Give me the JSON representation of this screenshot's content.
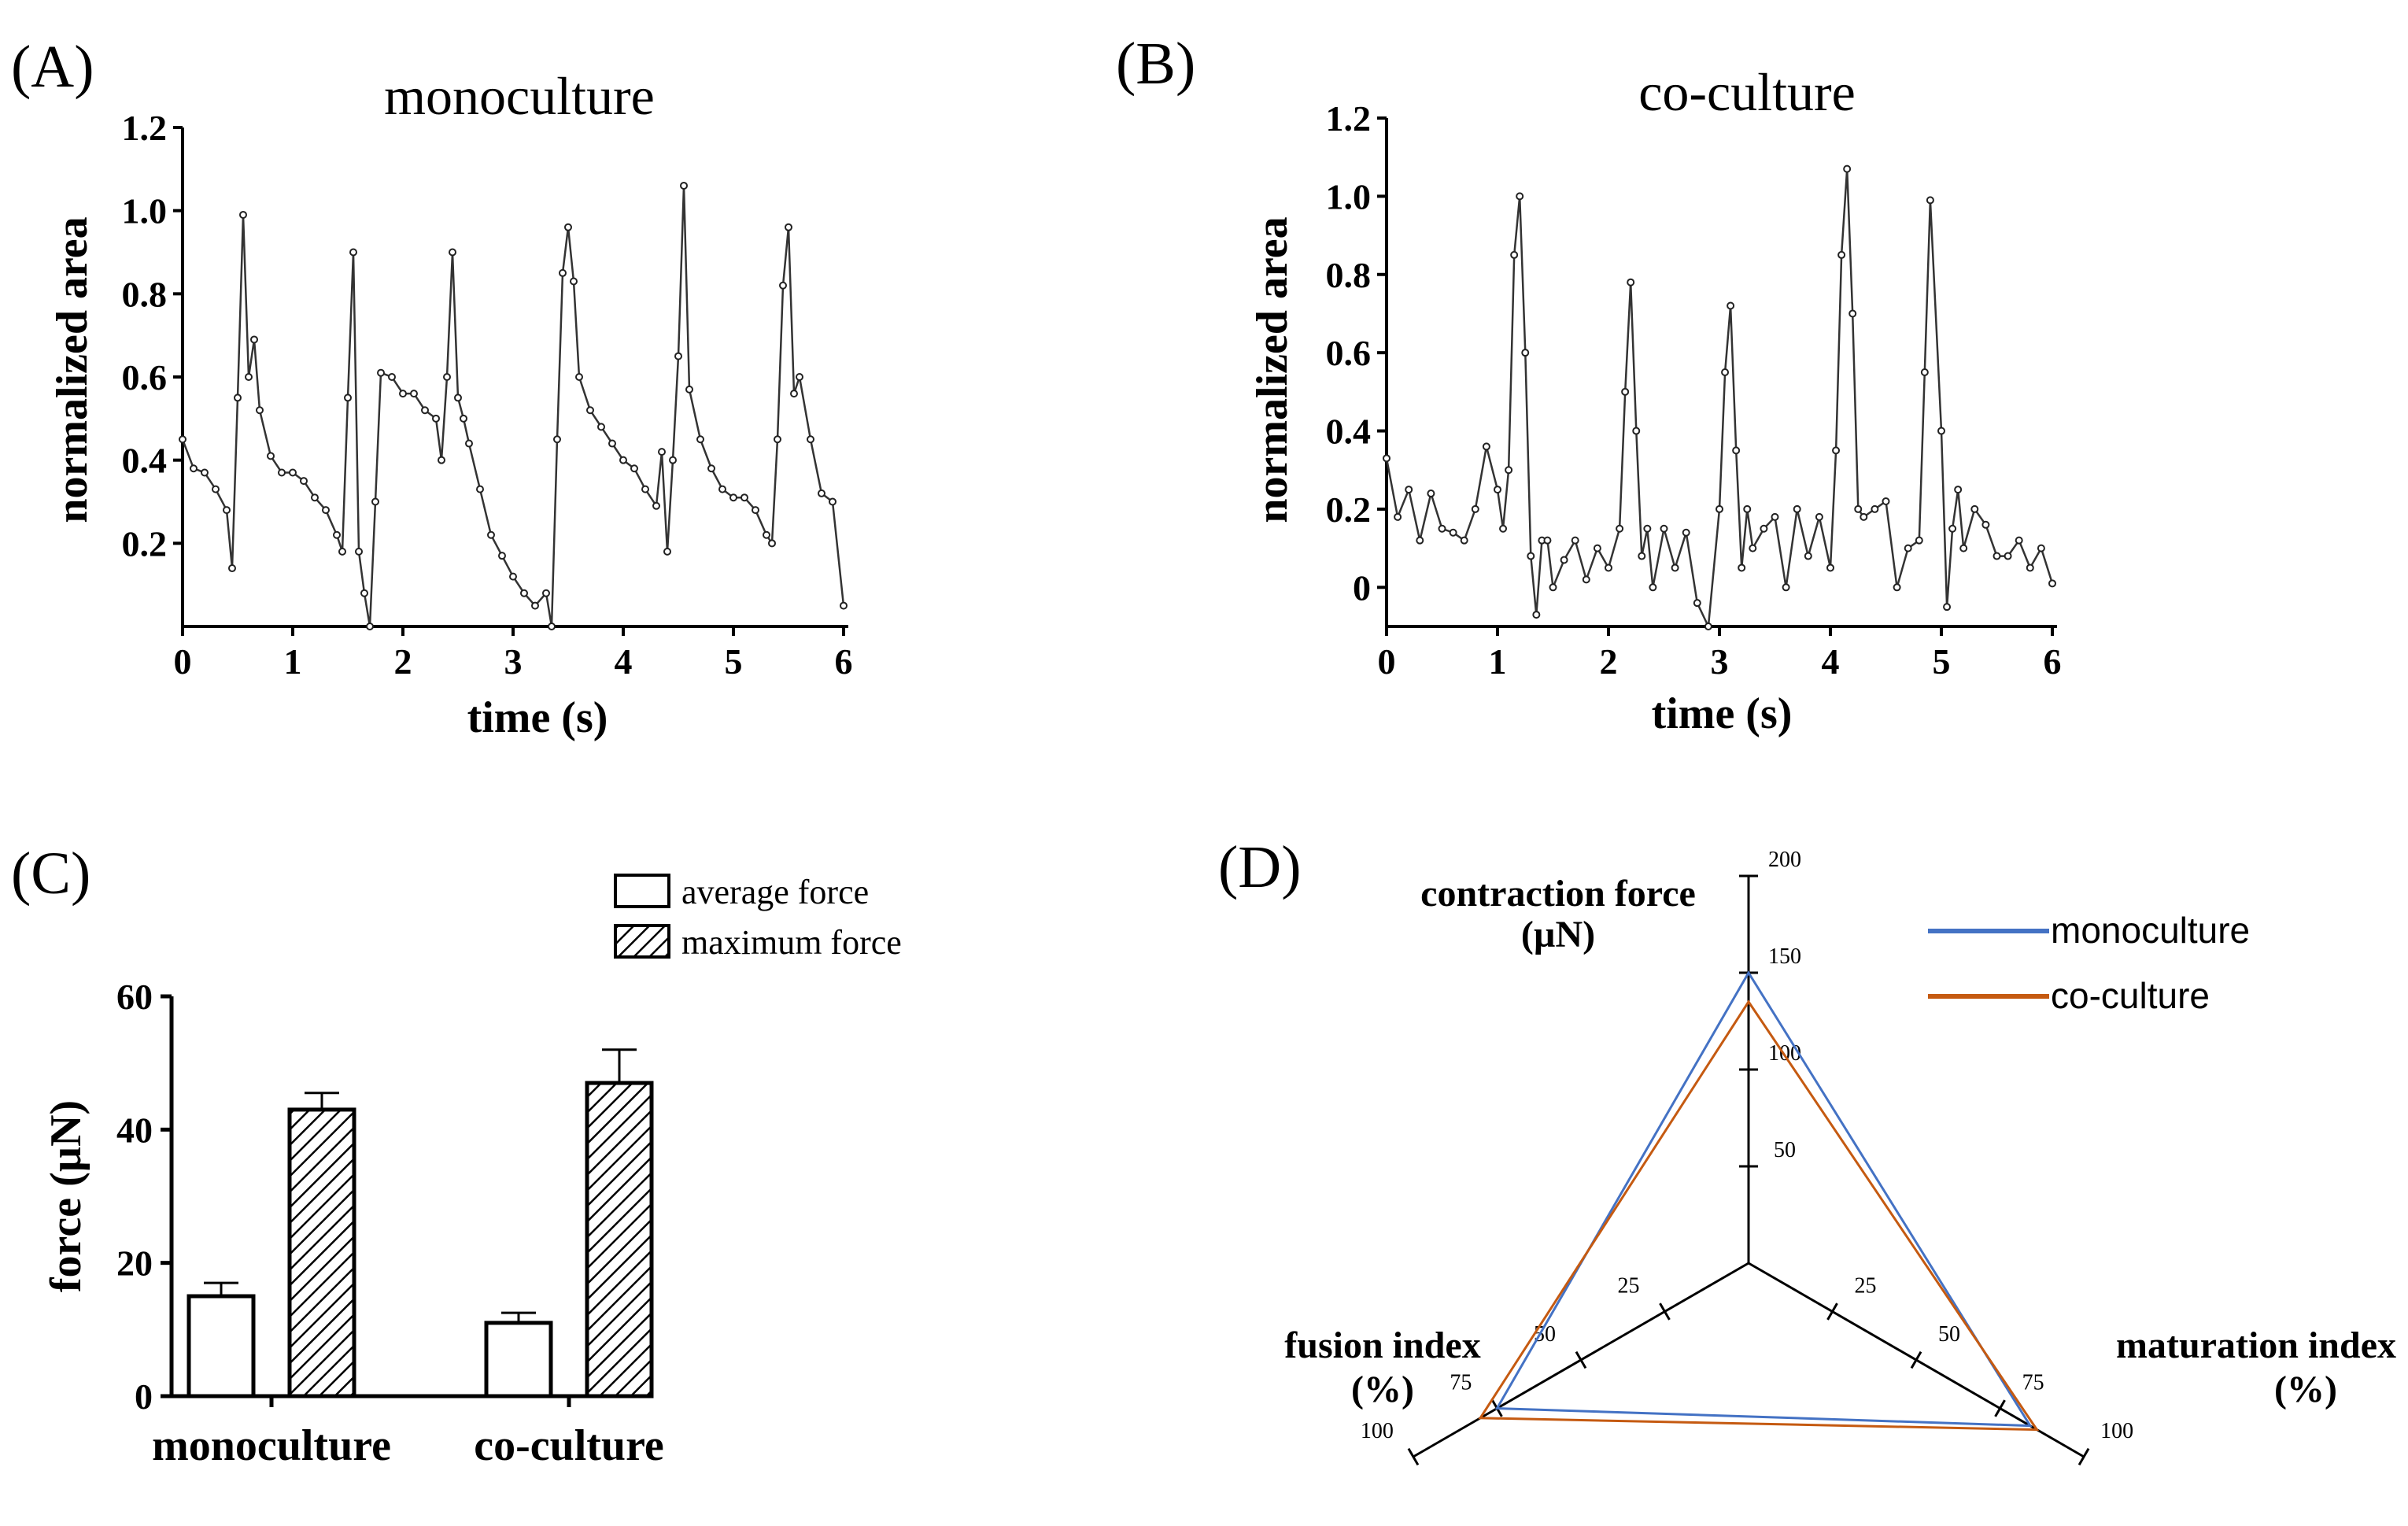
{
  "figure": {
    "panel_A": "(A)",
    "panel_B": "(B)",
    "panel_C": "(C)",
    "panel_D": "(D)"
  },
  "chart_data": [
    {
      "id": "A",
      "type": "line",
      "title": "monoculture",
      "xlabel": "time (s)",
      "ylabel": "normalized area",
      "xlim": [
        0,
        6
      ],
      "ylim": [
        0,
        1.2
      ],
      "xticks": [
        "0",
        "1",
        "2",
        "3",
        "4",
        "5",
        "6"
      ],
      "yticks": [
        "0.2",
        "0.4",
        "0.6",
        "0.8",
        "1.0",
        "1.2"
      ],
      "x": [
        0.0,
        0.1,
        0.2,
        0.3,
        0.4,
        0.45,
        0.5,
        0.55,
        0.6,
        0.65,
        0.7,
        0.8,
        0.9,
        1.0,
        1.1,
        1.2,
        1.3,
        1.4,
        1.45,
        1.5,
        1.55,
        1.6,
        1.65,
        1.7,
        1.75,
        1.8,
        1.9,
        2.0,
        2.1,
        2.2,
        2.3,
        2.35,
        2.4,
        2.45,
        2.5,
        2.55,
        2.6,
        2.7,
        2.8,
        2.9,
        3.0,
        3.1,
        3.2,
        3.3,
        3.35,
        3.4,
        3.45,
        3.5,
        3.55,
        3.6,
        3.7,
        3.8,
        3.9,
        4.0,
        4.1,
        4.2,
        4.3,
        4.35,
        4.4,
        4.45,
        4.5,
        4.55,
        4.6,
        4.7,
        4.8,
        4.9,
        5.0,
        5.1,
        5.2,
        5.3,
        5.35,
        5.4,
        5.45,
        5.5,
        5.55,
        5.6,
        5.7,
        5.8,
        5.9,
        6.0
      ],
      "y": [
        0.45,
        0.38,
        0.37,
        0.33,
        0.28,
        0.14,
        0.55,
        0.99,
        0.6,
        0.69,
        0.52,
        0.41,
        0.37,
        0.37,
        0.35,
        0.31,
        0.28,
        0.22,
        0.18,
        0.55,
        0.9,
        0.18,
        0.08,
        0.0,
        0.3,
        0.61,
        0.6,
        0.56,
        0.56,
        0.52,
        0.5,
        0.4,
        0.6,
        0.9,
        0.55,
        0.5,
        0.44,
        0.33,
        0.22,
        0.17,
        0.12,
        0.08,
        0.05,
        0.08,
        0.0,
        0.45,
        0.85,
        0.96,
        0.83,
        0.6,
        0.52,
        0.48,
        0.44,
        0.4,
        0.38,
        0.33,
        0.29,
        0.42,
        0.18,
        0.4,
        0.65,
        1.06,
        0.57,
        0.45,
        0.38,
        0.33,
        0.31,
        0.31,
        0.28,
        0.22,
        0.2,
        0.45,
        0.82,
        0.96,
        0.56,
        0.6,
        0.45,
        0.32,
        0.3,
        0.05
      ]
    },
    {
      "id": "B",
      "type": "line",
      "title": "co-culture",
      "xlabel": "time (s)",
      "ylabel": "normalized area",
      "xlim": [
        0,
        6
      ],
      "ylim": [
        -0.1,
        1.2
      ],
      "xticks": [
        "0",
        "1",
        "2",
        "3",
        "4",
        "5",
        "6"
      ],
      "yticks": [
        "0",
        "0.2",
        "0.4",
        "0.6",
        "0.8",
        "1.0",
        "1.2"
      ],
      "x": [
        0.0,
        0.1,
        0.2,
        0.3,
        0.4,
        0.5,
        0.6,
        0.7,
        0.8,
        0.9,
        1.0,
        1.05,
        1.1,
        1.15,
        1.2,
        1.25,
        1.3,
        1.35,
        1.4,
        1.45,
        1.5,
        1.6,
        1.7,
        1.8,
        1.9,
        2.0,
        2.1,
        2.15,
        2.2,
        2.25,
        2.3,
        2.35,
        2.4,
        2.5,
        2.6,
        2.7,
        2.8,
        2.9,
        3.0,
        3.05,
        3.1,
        3.15,
        3.2,
        3.25,
        3.3,
        3.4,
        3.5,
        3.6,
        3.7,
        3.8,
        3.9,
        4.0,
        4.05,
        4.1,
        4.15,
        4.2,
        4.25,
        4.3,
        4.4,
        4.5,
        4.6,
        4.7,
        4.8,
        4.85,
        4.9,
        5.0,
        5.05,
        5.1,
        5.15,
        5.2,
        5.3,
        5.4,
        5.5,
        5.6,
        5.7,
        5.8,
        5.9,
        6.0
      ],
      "y": [
        0.33,
        0.18,
        0.25,
        0.12,
        0.24,
        0.15,
        0.14,
        0.12,
        0.2,
        0.36,
        0.25,
        0.15,
        0.3,
        0.85,
        1.0,
        0.6,
        0.08,
        -0.07,
        0.12,
        0.12,
        0.0,
        0.07,
        0.12,
        0.02,
        0.1,
        0.05,
        0.15,
        0.5,
        0.78,
        0.4,
        0.08,
        0.15,
        0.0,
        0.15,
        0.05,
        0.14,
        -0.04,
        -0.1,
        0.2,
        0.55,
        0.72,
        0.35,
        0.05,
        0.2,
        0.1,
        0.15,
        0.18,
        0.0,
        0.2,
        0.08,
        0.18,
        0.05,
        0.35,
        0.85,
        1.07,
        0.7,
        0.2,
        0.18,
        0.2,
        0.22,
        0.0,
        0.1,
        0.12,
        0.55,
        0.99,
        0.4,
        -0.05,
        0.15,
        0.25,
        0.1,
        0.2,
        0.16,
        0.08,
        0.08,
        0.12,
        0.05,
        0.1,
        0.01
      ]
    },
    {
      "id": "C",
      "type": "bar",
      "ylabel": "force (µN)",
      "ylim": [
        0,
        60
      ],
      "yticks": [
        "0",
        "20",
        "40",
        "60"
      ],
      "categories": [
        "monoculture",
        "co-culture"
      ],
      "series": [
        {
          "name": "average force",
          "values": [
            15,
            11
          ],
          "errors": [
            2,
            1.5
          ]
        },
        {
          "name": "maximum force",
          "values": [
            43,
            47
          ],
          "errors": [
            2.5,
            5
          ]
        }
      ],
      "legend": "top-right"
    },
    {
      "id": "D",
      "type": "radar",
      "axes": [
        {
          "name": "contraction force",
          "unit": "(µN)",
          "max": 200,
          "ticks": [
            "50",
            "100",
            "150",
            "200"
          ]
        },
        {
          "name": "maturation index",
          "unit": "(%)",
          "max": 100,
          "ticks": [
            "25",
            "50",
            "75",
            "100"
          ]
        },
        {
          "name": "fusion index",
          "unit": "(%)",
          "max": 100,
          "ticks": [
            "25",
            "50",
            "75",
            "100"
          ]
        }
      ],
      "series": [
        {
          "name": "monoculture",
          "color": "#4472c4",
          "values": [
            150,
            84,
            75
          ]
        },
        {
          "name": "co-culture",
          "color": "#c55a11",
          "values": [
            135,
            86,
            80
          ]
        }
      ],
      "legend": "top-right"
    }
  ]
}
